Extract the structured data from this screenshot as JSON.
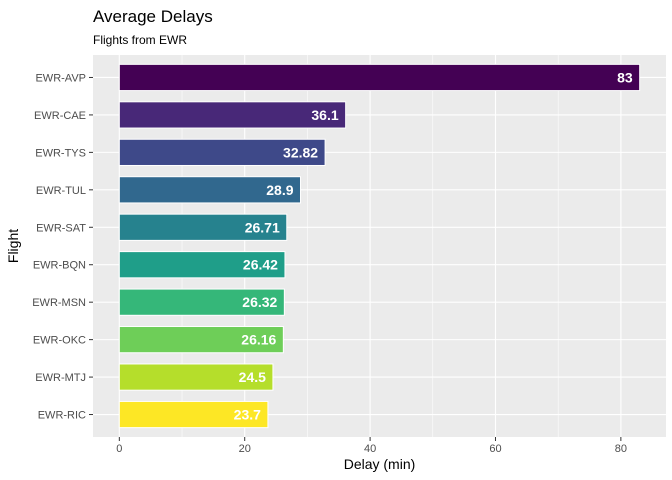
{
  "chart_data": {
    "type": "bar",
    "orientation": "horizontal",
    "title": "Average Delays",
    "subtitle": "Flights from EWR",
    "xlabel": "Delay (min)",
    "ylabel": "Flight",
    "categories": [
      "EWR-AVP",
      "EWR-CAE",
      "EWR-TYS",
      "EWR-TUL",
      "EWR-SAT",
      "EWR-BQN",
      "EWR-MSN",
      "EWR-OKC",
      "EWR-MTJ",
      "EWR-RIC"
    ],
    "values": [
      83,
      36.1,
      32.82,
      28.9,
      26.71,
      26.42,
      26.32,
      26.16,
      24.5,
      23.7
    ],
    "value_labels": [
      "83",
      "36.1",
      "32.82",
      "28.9",
      "26.71",
      "26.42",
      "26.32",
      "26.16",
      "24.5",
      "23.7"
    ],
    "bar_colors": [
      "#440154",
      "#482878",
      "#3e4989",
      "#31688e",
      "#26828e",
      "#1f9e89",
      "#35b779",
      "#6ece58",
      "#b5de2b",
      "#fde725"
    ],
    "xlim": [
      -4.2,
      87.2
    ],
    "xticks": [
      0,
      20,
      40,
      60,
      80
    ],
    "xtick_labels": [
      "0",
      "20",
      "40",
      "60",
      "80"
    ],
    "grid": true,
    "panel_background": "#ebebeb",
    "grid_color": "#ffffff",
    "legend": "none"
  }
}
